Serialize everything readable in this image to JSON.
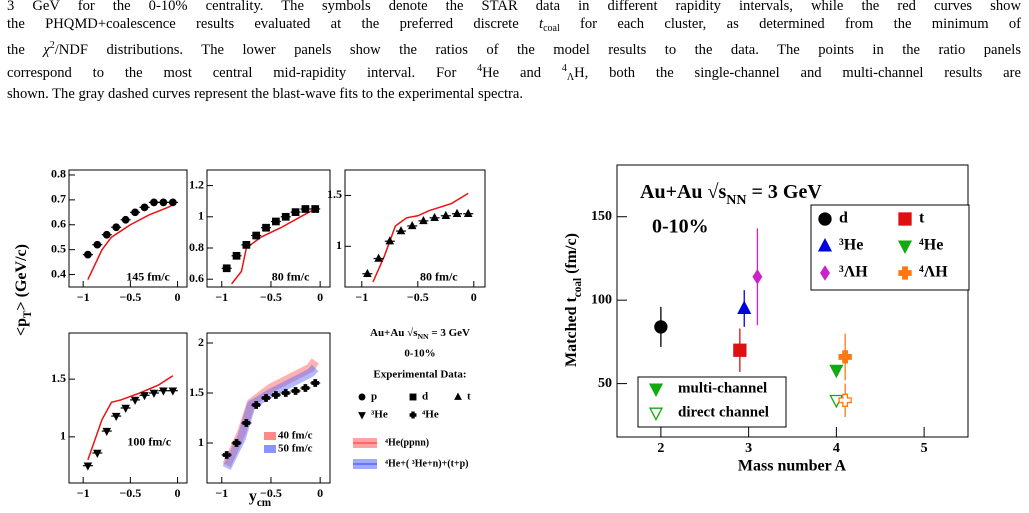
{
  "caption": {
    "lines": [
      [
        "3 GeV for the 0-10% centrality. The symbols denote the STAR data in different rapidity intervals, while the red curves show"
      ],
      [
        "the PHQMD+coalescence results evaluated at the preferred discrete ",
        "t",
        "coal",
        " for each cluster, as determined from the minimum of"
      ],
      [
        "the ",
        "χ",
        "2",
        "/NDF distributions. The lower panels show the ratios of the model results to the data. The points in the ratio panels"
      ],
      [
        "correspond to the most central mid-rapidity interval. For ",
        "4",
        "He and ",
        "4",
        "Λ",
        "H, both the single-channel and multi-channel results are"
      ],
      [
        "shown. The gray dashed curves represent the blast-wave fits to the experimental spectra."
      ]
    ]
  },
  "left_figure": {
    "y_label": [
      "<p",
      "T",
      "> (GeV/c)"
    ],
    "x_label": [
      "y",
      "cm"
    ],
    "panels": [
      {
        "marker": "circle",
        "label": "145 fm/c",
        "xlim": [
          -1.15,
          0.1
        ],
        "xticks": [
          {
            "value": -1,
            "label": "−1"
          },
          {
            "value": -0.5,
            "label": "−0.5"
          },
          0
        ],
        "ylim": [
          0.35,
          0.82
        ],
        "yticks": [
          0.4,
          0.5,
          0.6,
          0.7,
          0.8
        ],
        "x": [
          -0.95,
          -0.85,
          -0.75,
          -0.65,
          -0.55,
          -0.45,
          -0.35,
          -0.25,
          -0.15,
          -0.05
        ],
        "values": [
          0.48,
          0.52,
          0.56,
          0.59,
          0.62,
          0.65,
          0.67,
          0.69,
          0.69,
          0.69
        ],
        "model_x": [
          -0.95,
          -0.8,
          -0.7,
          -0.5,
          -0.3,
          -0.1,
          -0.05
        ],
        "model_values": [
          0.38,
          0.5,
          0.55,
          0.6,
          0.64,
          0.67,
          0.68
        ],
        "model_color": "#ee1111"
      },
      {
        "marker": "square",
        "label": "80 fm/c",
        "xlim": [
          -1.15,
          0.1
        ],
        "xticks": [
          {
            "value": -1,
            "label": "−1"
          },
          {
            "value": -0.5,
            "label": "−0.5"
          },
          0
        ],
        "ylim": [
          0.55,
          1.3
        ],
        "yticks": [
          0.6,
          0.8,
          1,
          1.2
        ],
        "x": [
          -0.95,
          -0.85,
          -0.75,
          -0.65,
          -0.55,
          -0.45,
          -0.35,
          -0.25,
          -0.15,
          -0.05
        ],
        "values": [
          0.67,
          0.75,
          0.82,
          0.88,
          0.93,
          0.97,
          1.0,
          1.03,
          1.05,
          1.05
        ],
        "model_x": [
          -0.9,
          -0.8,
          -0.75,
          -0.6,
          -0.4,
          -0.2,
          -0.05
        ],
        "model_values": [
          0.57,
          0.65,
          0.8,
          0.87,
          0.93,
          1.0,
          1.05
        ],
        "model_color": "#ee1111"
      },
      {
        "marker": "triangle-up",
        "label": "80 fm/c",
        "xlim": [
          -1.15,
          0.1
        ],
        "xticks": [
          {
            "value": -1,
            "label": "−1"
          },
          {
            "value": -0.5,
            "label": "−0.5"
          },
          0
        ],
        "ylim": [
          0.6,
          1.75
        ],
        "yticks": [
          1,
          1.5
        ],
        "x": [
          -0.95,
          -0.85,
          -0.75,
          -0.65,
          -0.55,
          -0.45,
          -0.35,
          -0.25,
          -0.15,
          -0.05
        ],
        "values": [
          0.73,
          0.88,
          1.05,
          1.15,
          1.2,
          1.25,
          1.28,
          1.3,
          1.32,
          1.32
        ],
        "model_x": [
          -0.9,
          -0.8,
          -0.7,
          -0.6,
          -0.5,
          -0.4,
          -0.2,
          -0.05
        ],
        "model_values": [
          0.65,
          0.9,
          1.2,
          1.28,
          1.3,
          1.35,
          1.42,
          1.52
        ],
        "model_color": "#ee1111"
      },
      {
        "marker": "triangle-down",
        "label": "100 fm/c",
        "xlim": [
          -1.15,
          0.1
        ],
        "xticks": [
          {
            "value": -1,
            "label": "−1"
          },
          {
            "value": -0.5,
            "label": "−0.5"
          },
          0
        ],
        "ylim": [
          0.6,
          1.9
        ],
        "yticks": [
          1,
          1.5
        ],
        "x": [
          -0.95,
          -0.85,
          -0.75,
          -0.65,
          -0.55,
          -0.45,
          -0.35,
          -0.25,
          -0.15,
          -0.05
        ],
        "values": [
          0.75,
          0.86,
          1.05,
          1.18,
          1.25,
          1.32,
          1.36,
          1.38,
          1.4,
          1.4
        ],
        "model_x": [
          -0.95,
          -0.8,
          -0.7,
          -0.6,
          -0.4,
          -0.2,
          -0.05
        ],
        "model_values": [
          0.8,
          1.15,
          1.3,
          1.32,
          1.38,
          1.45,
          1.53
        ],
        "model_color": "#ee1111"
      },
      {
        "marker": "cross",
        "xlim": [
          -1.15,
          0.1
        ],
        "xticks": [
          {
            "value": -1,
            "label": "−1"
          },
          {
            "value": -0.5,
            "label": "−0.5"
          },
          0
        ],
        "ylim": [
          0.6,
          2.1
        ],
        "yticks": [
          1,
          1.5,
          2
        ],
        "x": [
          -0.95,
          -0.85,
          -0.75,
          -0.65,
          -0.55,
          -0.45,
          -0.35,
          -0.25,
          -0.15,
          -0.05
        ],
        "values": [
          0.88,
          1.0,
          1.2,
          1.38,
          1.45,
          1.48,
          1.5,
          1.52,
          1.55,
          1.6
        ],
        "bands": [
          {
            "name": "40 fm/c",
            "color": "#ff5555",
            "x": [
              -0.95,
              -0.8,
              -0.7,
              -0.5,
              -0.3,
              -0.1,
              -0.05
            ],
            "values": [
              0.78,
              1.1,
              1.4,
              1.55,
              1.65,
              1.75,
              1.82
            ]
          },
          {
            "name": "50 fm/c",
            "color": "#5566ff",
            "x": [
              -0.95,
              -0.8,
              -0.7,
              -0.5,
              -0.3,
              -0.1,
              -0.05
            ],
            "values": [
              0.75,
              1.05,
              1.38,
              1.5,
              1.6,
              1.7,
              1.75
            ]
          }
        ]
      }
    ],
    "legend": {
      "system": [
        "Au+Au ",
        "√s",
        "NN",
        " = 3 GeV"
      ],
      "centrality": "0-10%",
      "heading": "Experimental Data:",
      "markers": [
        {
          "marker": "circle",
          "label": "p"
        },
        {
          "marker": "square",
          "label": "d"
        },
        {
          "marker": "triangle-up",
          "label": "t"
        },
        {
          "marker": "triangle-down",
          "label": "³He"
        },
        {
          "marker": "cross",
          "label": "⁴He"
        }
      ],
      "channels": [
        {
          "color": "#ff5555",
          "label": "⁴He(ppnn)"
        },
        {
          "color": "#5566ff",
          "label": "⁴He+( ³He+n)+(t+p)"
        }
      ]
    }
  },
  "chart_data": {
    "type": "scatter",
    "title": [
      "Au+Au ",
      "√s",
      "NN",
      " = 3 GeV"
    ],
    "subtitle": "0-10%",
    "x_label": "Mass number A",
    "y_label": [
      "Matched t",
      "coal",
      " (fm/c)"
    ],
    "xlim": [
      1.5,
      5.5
    ],
    "xticks": [
      2,
      3,
      4,
      5
    ],
    "ylim": [
      18,
      181
    ],
    "yticks": [
      50,
      100,
      150
    ],
    "series": [
      {
        "name": "d",
        "color": "#000000",
        "marker": "circle",
        "x": [
          2
        ],
        "values": [
          84
        ],
        "errors": [
          12
        ]
      },
      {
        "name": "t",
        "color": "#dd1111",
        "marker": "square",
        "x": [
          2.9
        ],
        "values": [
          70
        ],
        "errors": [
          13
        ]
      },
      {
        "name": "³He",
        "color": "#0000dd",
        "marker": "triangle-up",
        "x": [
          2.95
        ],
        "values": [
          95
        ],
        "errors": [
          11
        ]
      },
      {
        "name": "⁴He",
        "color": "#11aa11",
        "marker": "triangle-down",
        "x": [
          4
        ],
        "values": [
          58
        ],
        "errors": [
          3
        ],
        "direct_values": [
          40
        ],
        "direct_errors": [
          2
        ]
      },
      {
        "name": "³ΛH",
        "color": "#cc22cc",
        "marker": "diamond",
        "x": [
          3.1
        ],
        "values": [
          114
        ],
        "errors": [
          29
        ]
      },
      {
        "name": "⁴ΛH",
        "color": "#ff7711",
        "marker": "cross",
        "x": [
          4.1
        ],
        "values": [
          66
        ],
        "errors": [
          14
        ],
        "direct_values": [
          40
        ],
        "direct_errors": [
          10
        ]
      }
    ],
    "channel_legend": [
      {
        "label": "multi-channel",
        "style": "filled"
      },
      {
        "label": "direct channel",
        "style": "open"
      }
    ]
  }
}
